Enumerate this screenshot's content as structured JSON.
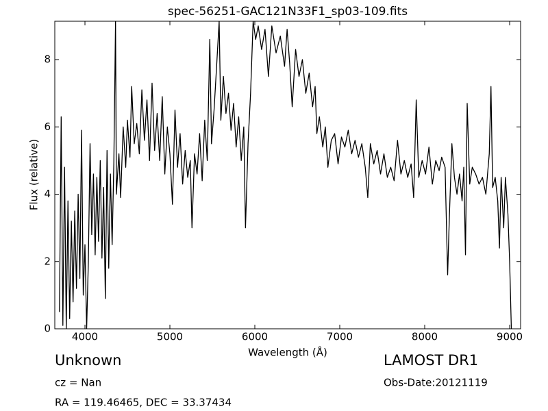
{
  "chart_data": {
    "type": "line",
    "title": "spec-56251-GAC121N33F1_sp03-109.fits",
    "xlabel": "Wavelength (Å)",
    "ylabel": "Flux (relative)",
    "annotations": [
      "Unknown",
      "cz = Nan",
      "RA = 119.46465, DEC = 33.37434",
      "LAMOST DR1",
      "Obs-Date:20121119"
    ],
    "xlim": [
      3645,
      9129
    ],
    "ylim": [
      0,
      9.14
    ],
    "xticks": [
      4000,
      5000,
      6000,
      7000,
      8000,
      9000
    ],
    "yticks": [
      0,
      2,
      4,
      6,
      8
    ],
    "grid": false,
    "series": [
      {
        "color": "#000000",
        "x": [
          3700,
          3720,
          3740,
          3760,
          3780,
          3800,
          3820,
          3840,
          3860,
          3880,
          3900,
          3920,
          3940,
          3960,
          3980,
          4000,
          4020,
          4040,
          4060,
          4080,
          4100,
          4120,
          4140,
          4160,
          4180,
          4200,
          4220,
          4240,
          4260,
          4280,
          4300,
          4320,
          4340,
          4360,
          4370,
          4400,
          4420,
          4450,
          4480,
          4500,
          4530,
          4550,
          4580,
          4610,
          4640,
          4670,
          4700,
          4730,
          4760,
          4790,
          4820,
          4850,
          4880,
          4910,
          4940,
          4970,
          5000,
          5030,
          5060,
          5090,
          5120,
          5150,
          5180,
          5210,
          5240,
          5260,
          5290,
          5320,
          5350,
          5380,
          5410,
          5440,
          5470,
          5490,
          5520,
          5550,
          5580,
          5600,
          5630,
          5660,
          5690,
          5720,
          5750,
          5780,
          5810,
          5840,
          5870,
          5890,
          5920,
          5950,
          5980,
          6010,
          6040,
          6080,
          6120,
          6160,
          6200,
          6250,
          6300,
          6350,
          6380,
          6410,
          6440,
          6480,
          6520,
          6560,
          6600,
          6640,
          6680,
          6710,
          6730,
          6760,
          6800,
          6830,
          6860,
          6900,
          6940,
          6980,
          7020,
          7060,
          7100,
          7140,
          7180,
          7220,
          7260,
          7300,
          7330,
          7360,
          7400,
          7440,
          7480,
          7520,
          7560,
          7600,
          7640,
          7680,
          7720,
          7760,
          7800,
          7840,
          7870,
          7900,
          7930,
          7970,
          8010,
          8050,
          8090,
          8130,
          8170,
          8200,
          8240,
          8270,
          8290,
          8320,
          8350,
          8380,
          8410,
          8440,
          8460,
          8480,
          8500,
          8530,
          8560,
          8600,
          8640,
          8680,
          8720,
          8760,
          8780,
          8800,
          8830,
          8860,
          8880,
          8900,
          8930,
          8950,
          8980,
          9000,
          9020
        ],
        "values": [
          0.5,
          6.3,
          0.1,
          4.8,
          0,
          3.8,
          0.3,
          3.2,
          0.8,
          3.5,
          1.2,
          4.0,
          1.5,
          5.9,
          1.0,
          2.5,
          0,
          2.0,
          5.5,
          2.8,
          4.6,
          2.2,
          4.5,
          2.6,
          5.0,
          2.1,
          4.2,
          0.9,
          5.3,
          1.8,
          4.6,
          2.5,
          4.9,
          9.14,
          4.0,
          5.2,
          3.9,
          6.0,
          4.8,
          6.2,
          5.1,
          7.2,
          5.5,
          6.1,
          5.2,
          7.1,
          5.6,
          6.8,
          5.0,
          7.3,
          5.3,
          6.4,
          5.0,
          6.9,
          4.6,
          6.0,
          5.2,
          3.7,
          6.5,
          4.8,
          5.8,
          4.3,
          5.3,
          4.5,
          5.0,
          3.0,
          5.2,
          4.6,
          5.8,
          4.4,
          6.2,
          5.0,
          8.6,
          5.5,
          6.5,
          7.8,
          9.14,
          6.2,
          7.5,
          6.4,
          7.0,
          5.9,
          6.7,
          5.4,
          6.3,
          5.0,
          6.0,
          3.0,
          5.5,
          7.0,
          9.14,
          8.6,
          9.0,
          8.3,
          8.9,
          7.5,
          9.0,
          8.2,
          8.7,
          7.8,
          8.9,
          7.9,
          6.6,
          8.3,
          7.5,
          8.0,
          7.0,
          7.6,
          6.6,
          7.2,
          5.8,
          6.3,
          5.4,
          6.0,
          4.8,
          5.6,
          5.8,
          4.9,
          5.7,
          5.4,
          5.9,
          5.2,
          5.6,
          5.1,
          5.5,
          4.8,
          3.9,
          5.5,
          4.9,
          5.3,
          4.6,
          5.2,
          4.5,
          4.8,
          4.4,
          5.6,
          4.6,
          5.0,
          4.5,
          4.9,
          3.9,
          6.8,
          4.5,
          5.0,
          4.6,
          5.4,
          4.3,
          5.0,
          4.7,
          5.1,
          4.8,
          1.6,
          3.3,
          5.5,
          4.5,
          4.0,
          4.6,
          3.8,
          4.8,
          2.2,
          6.7,
          4.3,
          4.8,
          4.6,
          4.3,
          4.5,
          4.0,
          5.2,
          7.2,
          4.2,
          4.5,
          3.8,
          2.4,
          4.5,
          3.0,
          4.5,
          3.4,
          2.0,
          0
        ]
      }
    ]
  }
}
